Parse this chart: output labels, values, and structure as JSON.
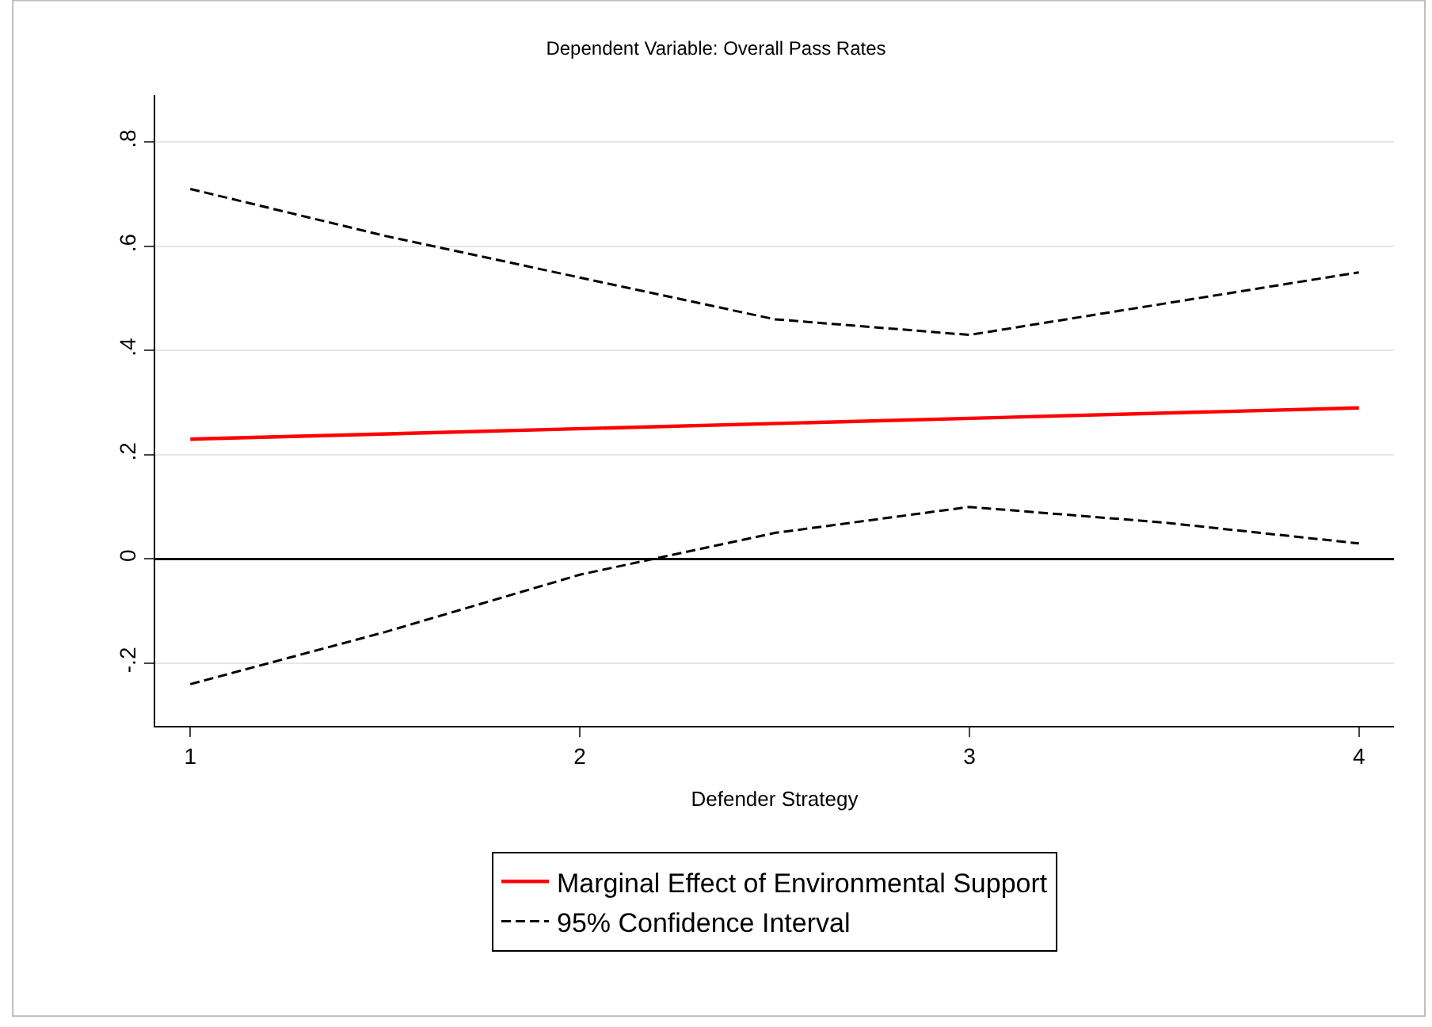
{
  "chart_data": {
    "type": "line",
    "title": "Dependent Variable: Overall Pass Rates",
    "xlabel": "Defender Strategy",
    "x": [
      1,
      1.5,
      2,
      2.5,
      3,
      3.5,
      4
    ],
    "series": [
      {
        "name": "Marginal Effect of Environmental Support",
        "color": "#ff0000",
        "x": [
          1,
          4
        ],
        "values": [
          0.23,
          0.29
        ],
        "line_style": "solid"
      },
      {
        "name": "95% Confidence Interval",
        "color": "#000000",
        "values": [
          0.71,
          0.62,
          0.54,
          0.46,
          0.43,
          0.49,
          0.55
        ],
        "line_style": "dashed"
      },
      {
        "color": "#000000",
        "values": [
          -0.24,
          -0.14,
          -0.03,
          0.05,
          0.1,
          0.07,
          0.03
        ],
        "line_style": "dashed"
      }
    ],
    "xlim": [
      0.91,
      4.09
    ],
    "xticks": [
      1,
      2,
      3,
      4
    ],
    "ylim": [
      -0.32,
      0.89
    ],
    "yticks": [
      {
        "value": -0.2,
        "label": "-.2"
      },
      0,
      {
        "value": 0.2,
        "label": ".2"
      },
      {
        "value": 0.4,
        "label": ".4"
      },
      {
        "value": 0.6,
        "label": ".6"
      },
      {
        "value": 0.8,
        "label": ".8"
      }
    ],
    "ref_lines": [
      {
        "axis": "y",
        "value": 0,
        "color": "#000000"
      }
    ],
    "grid": "y",
    "legend": "bottom",
    "marker": "none"
  }
}
